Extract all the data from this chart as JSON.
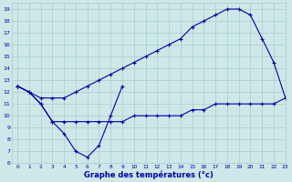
{
  "title": "Graphe des températures (°c)",
  "bg_color": "#cce8e8",
  "line_color": "#0000aa",
  "grid_color": "#aacccc",
  "xlim": [
    -0.5,
    23
  ],
  "ylim": [
    6,
    19.5
  ],
  "xticks": [
    0,
    1,
    2,
    3,
    4,
    5,
    6,
    7,
    8,
    9,
    10,
    11,
    12,
    13,
    14,
    15,
    16,
    17,
    18,
    19,
    20,
    21,
    22,
    23
  ],
  "yticks": [
    6,
    7,
    8,
    9,
    10,
    11,
    12,
    13,
    14,
    15,
    16,
    17,
    18,
    19
  ],
  "series": [
    {
      "x": [
        0,
        1,
        2,
        3,
        4,
        5,
        6,
        7,
        8,
        9,
        10,
        11,
        12,
        13,
        14,
        15,
        16,
        17,
        18,
        19,
        20,
        21,
        22,
        23
      ],
      "y": [
        12.5,
        12.0,
        11.5,
        11.5,
        11.5,
        12.0,
        12.5,
        13.0,
        13.5,
        14.0,
        14.5,
        15.0,
        15.5,
        16.0,
        16.5,
        17.5,
        18.0,
        18.5,
        19.0,
        19.0,
        18.5,
        16.5,
        14.5,
        11.5
      ]
    },
    {
      "x": [
        0,
        1,
        2,
        3,
        4,
        5,
        6,
        7,
        8,
        9
      ],
      "y": [
        12.5,
        12.0,
        11.0,
        9.5,
        8.5,
        7.0,
        6.5,
        7.5,
        10.0,
        12.5
      ]
    },
    {
      "x": [
        0,
        1,
        2,
        3,
        4,
        5,
        6,
        7,
        8,
        9,
        10,
        11,
        12,
        13,
        14,
        15,
        16,
        17,
        18,
        19,
        20,
        21,
        22,
        23
      ],
      "y": [
        12.5,
        12.0,
        11.0,
        9.5,
        9.5,
        9.5,
        9.5,
        9.5,
        9.5,
        9.5,
        10.0,
        10.0,
        10.0,
        10.0,
        10.0,
        10.5,
        10.5,
        11.0,
        11.0,
        11.0,
        11.0,
        11.0,
        11.0,
        11.5
      ]
    }
  ]
}
